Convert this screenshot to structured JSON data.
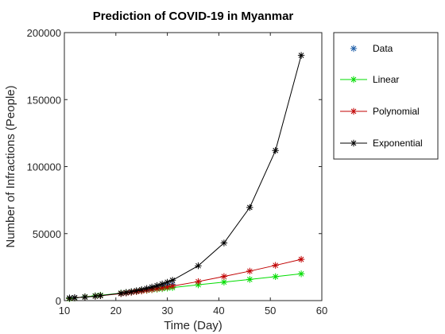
{
  "chart_data": {
    "type": "line",
    "title": "Prediction of COVID-19 in Myanmar",
    "xlabel": "Time (Day)",
    "ylabel": "Number of Infractions (People)",
    "xlim": [
      10,
      60
    ],
    "ylim": [
      0,
      200000
    ],
    "xticks": [
      "10",
      "20",
      "30",
      "40",
      "50",
      "60"
    ],
    "yticks": [
      "0",
      "50000",
      "100000",
      "150000",
      "200000"
    ],
    "grid": false,
    "legend_position": "outside-right",
    "series": [
      {
        "name": "Data",
        "color": "#1f5fa8",
        "line": false,
        "marker": "asterisk",
        "x": [
          11,
          12,
          14,
          16,
          17,
          21,
          22,
          23,
          24,
          25,
          26,
          27,
          28,
          29,
          30,
          31
        ],
        "y": [
          2000,
          2300,
          2900,
          3500,
          3900,
          5200,
          5700,
          6200,
          6800,
          7400,
          8100,
          8800,
          9600,
          10500,
          11300,
          12200
        ]
      },
      {
        "name": "Linear",
        "color": "#00dd00",
        "line": true,
        "marker": "asterisk",
        "x": [
          11,
          12,
          14,
          16,
          17,
          21,
          22,
          23,
          24,
          25,
          26,
          27,
          28,
          29,
          30,
          31,
          36,
          41,
          46,
          51,
          56
        ],
        "y": [
          1500,
          2000,
          2800,
          3600,
          4000,
          5600,
          6000,
          6400,
          6800,
          7300,
          7700,
          8100,
          8500,
          8900,
          9300,
          9700,
          11800,
          13800,
          15800,
          17900,
          20000
        ]
      },
      {
        "name": "Polynomial",
        "color": "#c00000",
        "line": true,
        "marker": "asterisk",
        "x": [
          11,
          12,
          14,
          16,
          17,
          21,
          22,
          23,
          24,
          25,
          26,
          27,
          28,
          29,
          30,
          31,
          36,
          41,
          46,
          51,
          56
        ],
        "y": [
          1800,
          2100,
          2700,
          3300,
          3700,
          5200,
          5700,
          6200,
          6700,
          7200,
          7800,
          8300,
          8900,
          9500,
          10100,
          10800,
          14200,
          18000,
          22000,
          26300,
          30800
        ]
      },
      {
        "name": "Exponential",
        "color": "#000000",
        "line": true,
        "marker": "asterisk",
        "x": [
          11,
          12,
          14,
          16,
          17,
          21,
          22,
          23,
          24,
          25,
          26,
          27,
          28,
          29,
          30,
          31,
          36,
          41,
          46,
          51,
          56
        ],
        "y": [
          1900,
          2100,
          2600,
          3300,
          3700,
          5500,
          6100,
          6700,
          7400,
          8200,
          9100,
          10100,
          11200,
          12400,
          13700,
          15200,
          26000,
          43000,
          69500,
          112000,
          183000
        ]
      }
    ]
  }
}
